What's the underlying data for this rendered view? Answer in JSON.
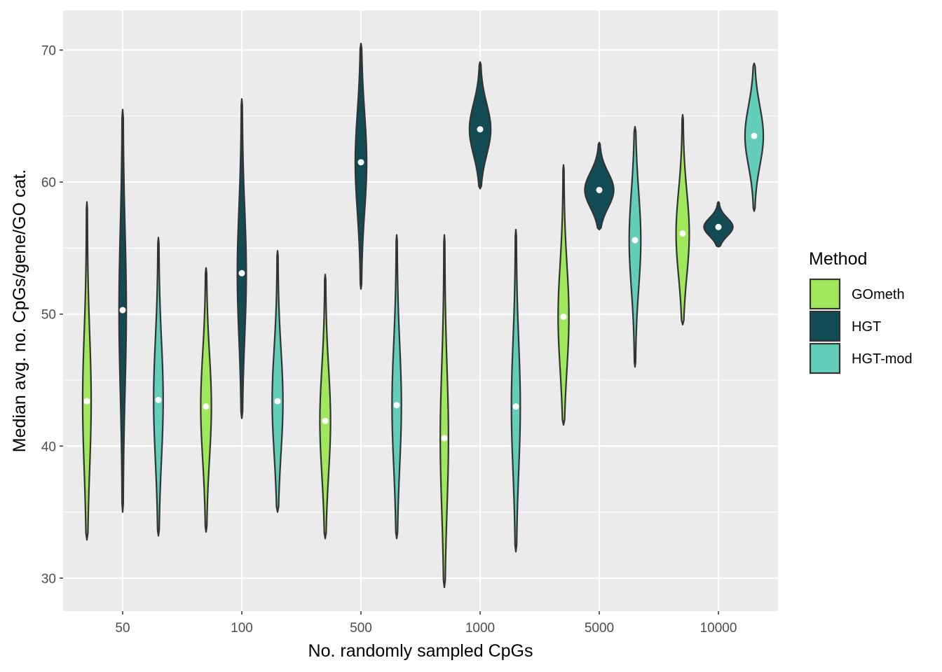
{
  "chart_data": {
    "type": "violin",
    "xlabel": "No. randomly sampled CpGs",
    "ylabel": "Median avg. no. CpGs/gene/GO cat.",
    "categories": [
      "50",
      "100",
      "500",
      "1000",
      "5000",
      "10000"
    ],
    "ylim": [
      27.5,
      73
    ],
    "yticks": [
      30,
      40,
      50,
      60,
      70
    ],
    "grid": true,
    "legend_title": "Method",
    "legend_position": "right",
    "series": [
      {
        "name": "GOmeth",
        "color": "#a0e85b",
        "violins": [
          {
            "category": "50",
            "min": 32.9,
            "max": 58.5,
            "median": 43.4
          },
          {
            "category": "100",
            "min": 33.5,
            "max": 53.5,
            "median": 43.0
          },
          {
            "category": "500",
            "min": 33.0,
            "max": 53.0,
            "median": 41.9
          },
          {
            "category": "1000",
            "min": 29.3,
            "max": 56.0,
            "median": 40.6
          },
          {
            "category": "5000",
            "min": 41.6,
            "max": 61.3,
            "median": 49.8
          },
          {
            "category": "10000",
            "min": 49.2,
            "max": 65.1,
            "median": 56.1
          }
        ]
      },
      {
        "name": "HGT",
        "color": "#134b55",
        "violins": [
          {
            "category": "50",
            "min": 35.0,
            "max": 65.5,
            "median": 50.3
          },
          {
            "category": "100",
            "min": 42.1,
            "max": 66.3,
            "median": 53.1
          },
          {
            "category": "500",
            "min": 51.9,
            "max": 70.5,
            "median": 61.5
          },
          {
            "category": "1000",
            "min": 59.5,
            "max": 69.1,
            "median": 64.0
          },
          {
            "category": "5000",
            "min": 56.4,
            "max": 63.0,
            "median": 59.4
          },
          {
            "category": "10000",
            "min": 55.1,
            "max": 58.5,
            "median": 56.6
          }
        ]
      },
      {
        "name": "HGT-mod",
        "color": "#62cdb8",
        "violins": [
          {
            "category": "50",
            "min": 33.2,
            "max": 55.8,
            "median": 43.5
          },
          {
            "category": "100",
            "min": 35.0,
            "max": 54.8,
            "median": 43.4
          },
          {
            "category": "500",
            "min": 33.0,
            "max": 56.0,
            "median": 43.1
          },
          {
            "category": "1000",
            "min": 32.0,
            "max": 56.4,
            "median": 43.0
          },
          {
            "category": "5000",
            "min": 46.0,
            "max": 64.2,
            "median": 55.6
          },
          {
            "category": "10000",
            "min": 57.8,
            "max": 69.0,
            "median": 63.5
          }
        ]
      }
    ]
  }
}
